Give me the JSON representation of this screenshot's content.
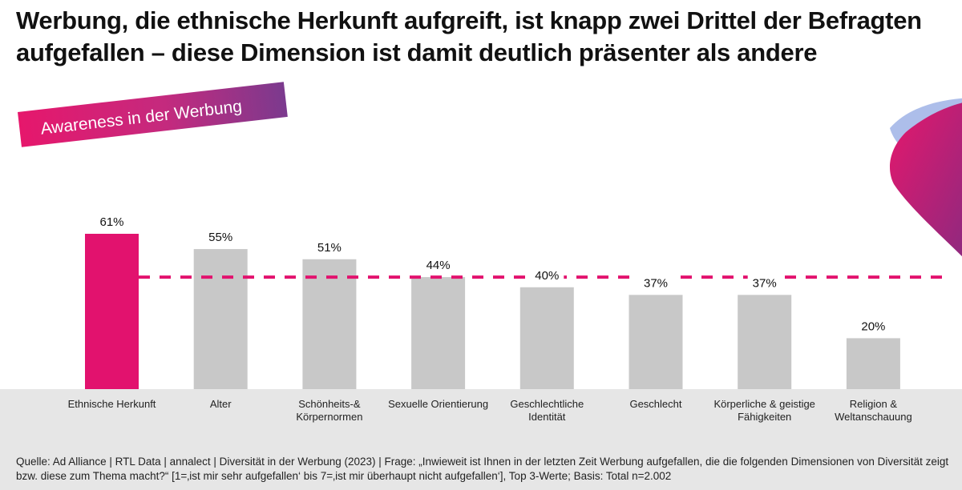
{
  "title": "Werbung, die ethnische Herkunft aufgreift, ist knapp zwei Drittel der Befragten aufgefallen – diese Dimension ist damit deutlich präsenter als andere",
  "banner": "Awareness in der Werbung",
  "source": "Quelle: Ad Alliance | RTL Data | annalect | Diversität in der Werbung (2023) | Frage: „Inwieweit ist Ihnen in der letzten Zeit Werbung aufgefallen, die die folgenden Dimensionen von Diversität zeigt bzw. diese zum Thema macht?“ [1=‚ist mir sehr aufgefallen‘ bis 7=‚ist mir überhaupt nicht aufgefallen‘], Top 3-Werte; Basis: Total n=2.002",
  "colors": {
    "highlight": "#e2126e",
    "bar": "#c8c8c8",
    "reference_line": "#e2126e",
    "footer_band": "#e6e6e6"
  },
  "chart_data": {
    "type": "bar",
    "categories": [
      "Ethnische Herkunft",
      "Alter",
      "Schönheits-&\nKörpernormen",
      "Sexuelle Orientierung",
      "Geschlechtliche\nIdentität",
      "Geschlecht",
      "Körperliche & geistige\nFähigkeiten",
      "Religion &\nWeltanschauung"
    ],
    "values": [
      61,
      55,
      51,
      44,
      40,
      37,
      37,
      20
    ],
    "value_labels": [
      "61%",
      "55%",
      "51%",
      "44%",
      "40%",
      "37%",
      "37%",
      "20%"
    ],
    "highlighted_index": 0,
    "reference_line": {
      "value": 44,
      "style": "dashed"
    },
    "ylim": [
      0,
      61
    ],
    "grid": false,
    "title": "",
    "xlabel": "",
    "ylabel": ""
  }
}
